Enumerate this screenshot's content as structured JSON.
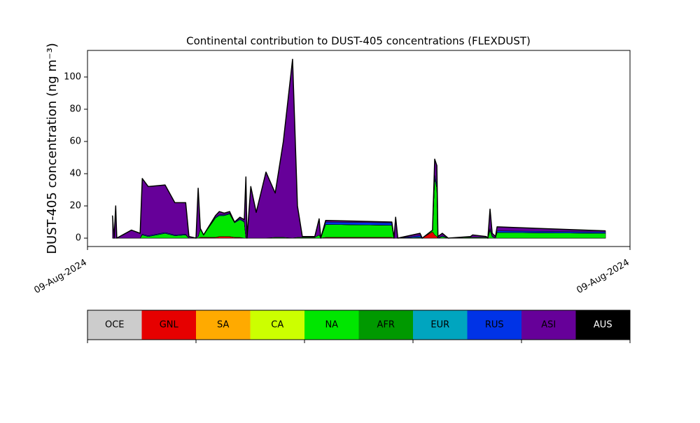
{
  "chart_data": {
    "type": "stacked_area",
    "title": "Continental contribution to DUST-405 concentrations (FLEXDUST)",
    "y_label": "DUST-405 concentration (ng m⁻³)",
    "x": [
      0.046,
      0.049,
      0.052,
      0.054,
      0.081,
      0.097,
      0.101,
      0.112,
      0.143,
      0.161,
      0.181,
      0.187,
      0.2,
      0.204,
      0.208,
      0.214,
      0.236,
      0.243,
      0.252,
      0.262,
      0.271,
      0.281,
      0.289,
      0.292,
      0.294,
      0.301,
      0.311,
      0.329,
      0.346,
      0.361,
      0.378,
      0.387,
      0.396,
      0.419,
      0.427,
      0.43,
      0.439,
      0.561,
      0.565,
      0.568,
      0.572,
      0.613,
      0.617,
      0.636,
      0.64,
      0.644,
      0.646,
      0.654,
      0.665,
      0.706,
      0.71,
      0.735,
      0.738,
      0.742,
      0.746,
      0.752,
      0.755,
      0.955
    ],
    "xlim": [
      0,
      1
    ],
    "xticks": [
      {
        "value": 0,
        "label": "09-Aug-2024"
      },
      {
        "value": 1,
        "label": "09-Aug-2024"
      }
    ],
    "ylim": [
      -5.2,
      116.5
    ],
    "yticks": [
      0,
      20,
      40,
      60,
      80,
      100
    ],
    "series": [
      {
        "name": "OCE",
        "color": "#cccccc",
        "values": [
          0,
          0,
          0,
          0,
          0,
          0,
          0,
          0,
          0,
          0,
          0,
          0,
          0,
          0,
          0,
          0,
          0,
          0,
          0,
          0,
          0,
          0,
          0,
          0,
          0,
          0,
          0,
          0,
          0,
          0,
          0,
          0,
          0,
          0,
          0,
          0,
          0,
          0,
          0,
          0,
          0,
          0,
          0,
          0,
          0,
          0,
          0,
          0,
          0,
          0,
          0,
          0,
          0,
          0,
          0,
          0,
          0,
          0
        ]
      },
      {
        "name": "GNL",
        "color": "#e60000",
        "values": [
          0,
          0,
          0,
          0,
          0,
          0,
          0,
          0,
          0,
          0,
          0,
          0,
          0,
          0,
          0.5,
          0.5,
          0.5,
          1,
          1,
          1,
          0.5,
          0.5,
          0,
          0,
          0,
          0,
          0,
          0,
          0,
          0,
          0,
          0,
          0,
          0,
          0,
          0,
          0.5,
          0.5,
          0,
          0,
          0,
          0,
          0,
          4,
          2,
          1,
          0,
          0,
          0,
          0,
          0,
          0,
          0,
          0,
          0,
          0,
          0,
          0
        ]
      },
      {
        "name": "SA",
        "color": "#ffaa00",
        "values": [
          0,
          0,
          0,
          0,
          0,
          0,
          0,
          0,
          0,
          0,
          0,
          0,
          0,
          0,
          0,
          0,
          0,
          0,
          0,
          0,
          0,
          0,
          0,
          0,
          0,
          0,
          0,
          0,
          0,
          0,
          0,
          0,
          0,
          0,
          0,
          0,
          0,
          0,
          0,
          0,
          0,
          0,
          0,
          0,
          0,
          0,
          0,
          0,
          0,
          0,
          0,
          0,
          0,
          0,
          0,
          0,
          0,
          0
        ]
      },
      {
        "name": "CA",
        "color": "#ccff00",
        "values": [
          0,
          0,
          0,
          0,
          0,
          0,
          0,
          0,
          0,
          0,
          0,
          0,
          0,
          0,
          0,
          0,
          0,
          0,
          0,
          0,
          0,
          0,
          0,
          0,
          0,
          0,
          0,
          0,
          0,
          0,
          0,
          0,
          0,
          0,
          0,
          0,
          0,
          0,
          0,
          0,
          0,
          0,
          0,
          0,
          0,
          0,
          0,
          0,
          0,
          0,
          0,
          0,
          0,
          0,
          0,
          0,
          0,
          0
        ]
      },
      {
        "name": "NA",
        "color": "#00e600",
        "values": [
          0,
          0,
          0,
          0,
          0,
          0,
          2,
          1,
          3,
          1.5,
          2,
          0,
          0,
          1,
          5,
          1.5,
          12,
          13,
          13,
          14,
          9,
          11,
          10,
          0,
          0,
          0,
          0,
          0,
          0.5,
          0.5,
          0,
          0.5,
          0.5,
          0.5,
          2,
          0,
          8,
          7.5,
          0,
          0,
          0,
          0.5,
          0,
          1,
          35,
          30,
          0,
          1,
          0,
          0.5,
          0.5,
          0.5,
          0,
          5,
          1,
          0,
          3.5,
          3
        ]
      },
      {
        "name": "AFR",
        "color": "#009900",
        "values": [
          0,
          0,
          0,
          0,
          0,
          0,
          0,
          0,
          0,
          0,
          0,
          0,
          0,
          0,
          0,
          0,
          0,
          0,
          0,
          0,
          0,
          0,
          0,
          0,
          0,
          0,
          0,
          0,
          0,
          0,
          0,
          0,
          0,
          0,
          0,
          0,
          0,
          0,
          0,
          0,
          0,
          0,
          0,
          0,
          0,
          0,
          0,
          0,
          0,
          0,
          0,
          0,
          0,
          0,
          0,
          0,
          0,
          0
        ]
      },
      {
        "name": "EUR",
        "color": "#00a5bf",
        "values": [
          0,
          0,
          0,
          0,
          0,
          0,
          0,
          0,
          0,
          0,
          0,
          0,
          0,
          0,
          0,
          0,
          0,
          0,
          0,
          0,
          0,
          0,
          0,
          0,
          0,
          0,
          0,
          0,
          0,
          0,
          0,
          0,
          0,
          0,
          0,
          0,
          0,
          0,
          0,
          0,
          0,
          0,
          0,
          0,
          0,
          0,
          0,
          0,
          0,
          0,
          0,
          0,
          0,
          0,
          0,
          0,
          0,
          0
        ]
      },
      {
        "name": "RUS",
        "color": "#0033e6",
        "values": [
          0,
          0,
          0,
          0,
          0,
          0,
          0.5,
          0.5,
          0.5,
          0.5,
          0.5,
          0,
          0,
          0,
          0,
          0,
          0.5,
          0.5,
          0.5,
          0.5,
          0.5,
          0.5,
          0.5,
          0,
          0,
          0,
          0,
          0,
          0,
          0,
          0,
          0,
          0,
          0,
          0,
          0,
          1.5,
          1.5,
          0,
          0,
          0,
          1,
          0,
          0,
          2,
          2,
          0,
          0.5,
          0,
          0,
          0,
          0,
          0,
          1,
          0.5,
          0,
          1,
          0.8
        ]
      },
      {
        "name": "ASI",
        "color": "#660099",
        "values": [
          14,
          0,
          20,
          0,
          5,
          3,
          34.5,
          30.5,
          29.5,
          20,
          19.5,
          1,
          0,
          30,
          0.5,
          0,
          1,
          2,
          1,
          1,
          0,
          1,
          1,
          38,
          0,
          32,
          16,
          41,
          27.5,
          59.5,
          111,
          19.5,
          0.5,
          0.5,
          10,
          0,
          1,
          0.5,
          0,
          13,
          0,
          1.5,
          0,
          0,
          10,
          12,
          1,
          1.5,
          0,
          0.5,
          1.5,
          0.5,
          0,
          12,
          1.5,
          1,
          2.5,
          0.7
        ]
      },
      {
        "name": "AUS",
        "color": "#000000",
        "values": [
          0,
          0,
          0,
          0,
          0,
          0,
          0,
          0,
          0,
          0,
          0,
          0,
          0,
          0,
          0,
          0,
          0,
          0,
          0,
          0,
          0,
          0,
          0,
          0,
          0,
          0,
          0,
          0,
          0,
          0,
          0,
          0,
          0,
          0,
          0,
          0,
          0,
          0,
          0,
          0,
          0,
          0,
          0,
          0,
          0,
          0,
          0,
          0,
          0,
          0,
          0,
          0,
          0,
          0,
          0,
          0,
          0,
          0
        ]
      }
    ]
  }
}
